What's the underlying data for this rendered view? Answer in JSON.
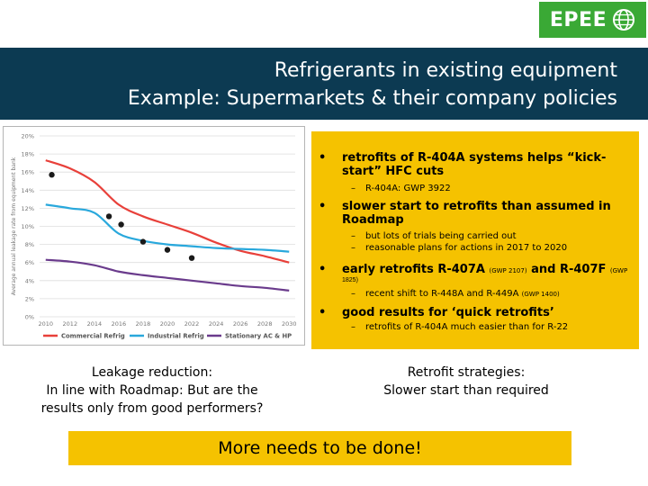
{
  "logo": {
    "text": "EPEE",
    "icon": "globe-icon",
    "color": "#3aa935"
  },
  "title": {
    "line1": "Refrigerants in existing equipment",
    "line2": "Example: Supermarkets & their company policies"
  },
  "chart_data": {
    "type": "line",
    "ylabel": "Average annual leakage rate from equipment bank",
    "xlabel": "",
    "x": [
      2010,
      2012,
      2014,
      2016,
      2018,
      2020,
      2022,
      2024,
      2026,
      2028,
      2030
    ],
    "xticks": [
      "2010",
      "2012",
      "2014",
      "2016",
      "2018",
      "2020",
      "2022",
      "2024",
      "2026",
      "2028",
      "2030"
    ],
    "yticks": [
      "0%",
      "2%",
      "4%",
      "6%",
      "8%",
      "10%",
      "12%",
      "14%",
      "16%",
      "18%",
      "20%"
    ],
    "ylim": [
      0,
      20
    ],
    "xlim": [
      2009.5,
      2030.5
    ],
    "grid": true,
    "legend_position": "bottom",
    "series": [
      {
        "name": "Commercial Refrig",
        "color": "#e8403a",
        "values": [
          17.3,
          16.4,
          14.9,
          12.4,
          11.1,
          10.2,
          9.3,
          8.2,
          7.3,
          6.7,
          6.0
        ]
      },
      {
        "name": "Industrial Refrig",
        "color": "#29a8dc",
        "values": [
          12.4,
          12.0,
          11.5,
          9.2,
          8.4,
          8.0,
          7.8,
          7.6,
          7.5,
          7.4,
          7.2
        ]
      },
      {
        "name": "Stationary AC & HP",
        "color": "#6a3b8c",
        "values": [
          6.3,
          6.1,
          5.7,
          5.0,
          4.6,
          4.3,
          4.0,
          3.7,
          3.4,
          3.2,
          2.9
        ]
      }
    ],
    "points": {
      "color": "#1a1a1a",
      "x": [
        2010.5,
        2015.2,
        2016.2,
        2018,
        2020,
        2022
      ],
      "y": [
        15.7,
        11.1,
        10.2,
        8.3,
        7.4,
        6.5
      ]
    }
  },
  "bullets": [
    {
      "text": "retrofits of R-404A systems helps “kick-start” HFC cuts",
      "subs": [
        "R-404A:  GWP 3922"
      ]
    },
    {
      "text": "slower start to retrofits than assumed in Roadmap",
      "subs": [
        "but lots of trials being carried out",
        "reasonable plans for actions in 2017 to 2020"
      ]
    },
    {
      "text_a": "early retrofits R-407A ",
      "small_a": "(GWP 2107)",
      "text_b": " and R-407F ",
      "small_b": "(GWP",
      "small_c": "1825)",
      "subs": []
    },
    {
      "sub_a": "recent shift to R-448A and R-449A ",
      "sub_small": "(GWP 1400)"
    },
    {
      "text": "good results for ‘quick retrofits’",
      "subs": [
        "retrofits of R-404A much easier than for R-22"
      ]
    }
  ],
  "bullet_symbol": "•",
  "dash_symbol": "–",
  "caption_left": {
    "line1": "Leakage reduction:",
    "line2": "In line with Roadmap: But are the",
    "line3": "results only from good performers?"
  },
  "caption_right": {
    "line1": "Retrofit strategies:",
    "line2": "Slower start than required"
  },
  "conclusion": "More needs to be done!",
  "accent": "#f5c200",
  "title_bg": "#0c3a52"
}
